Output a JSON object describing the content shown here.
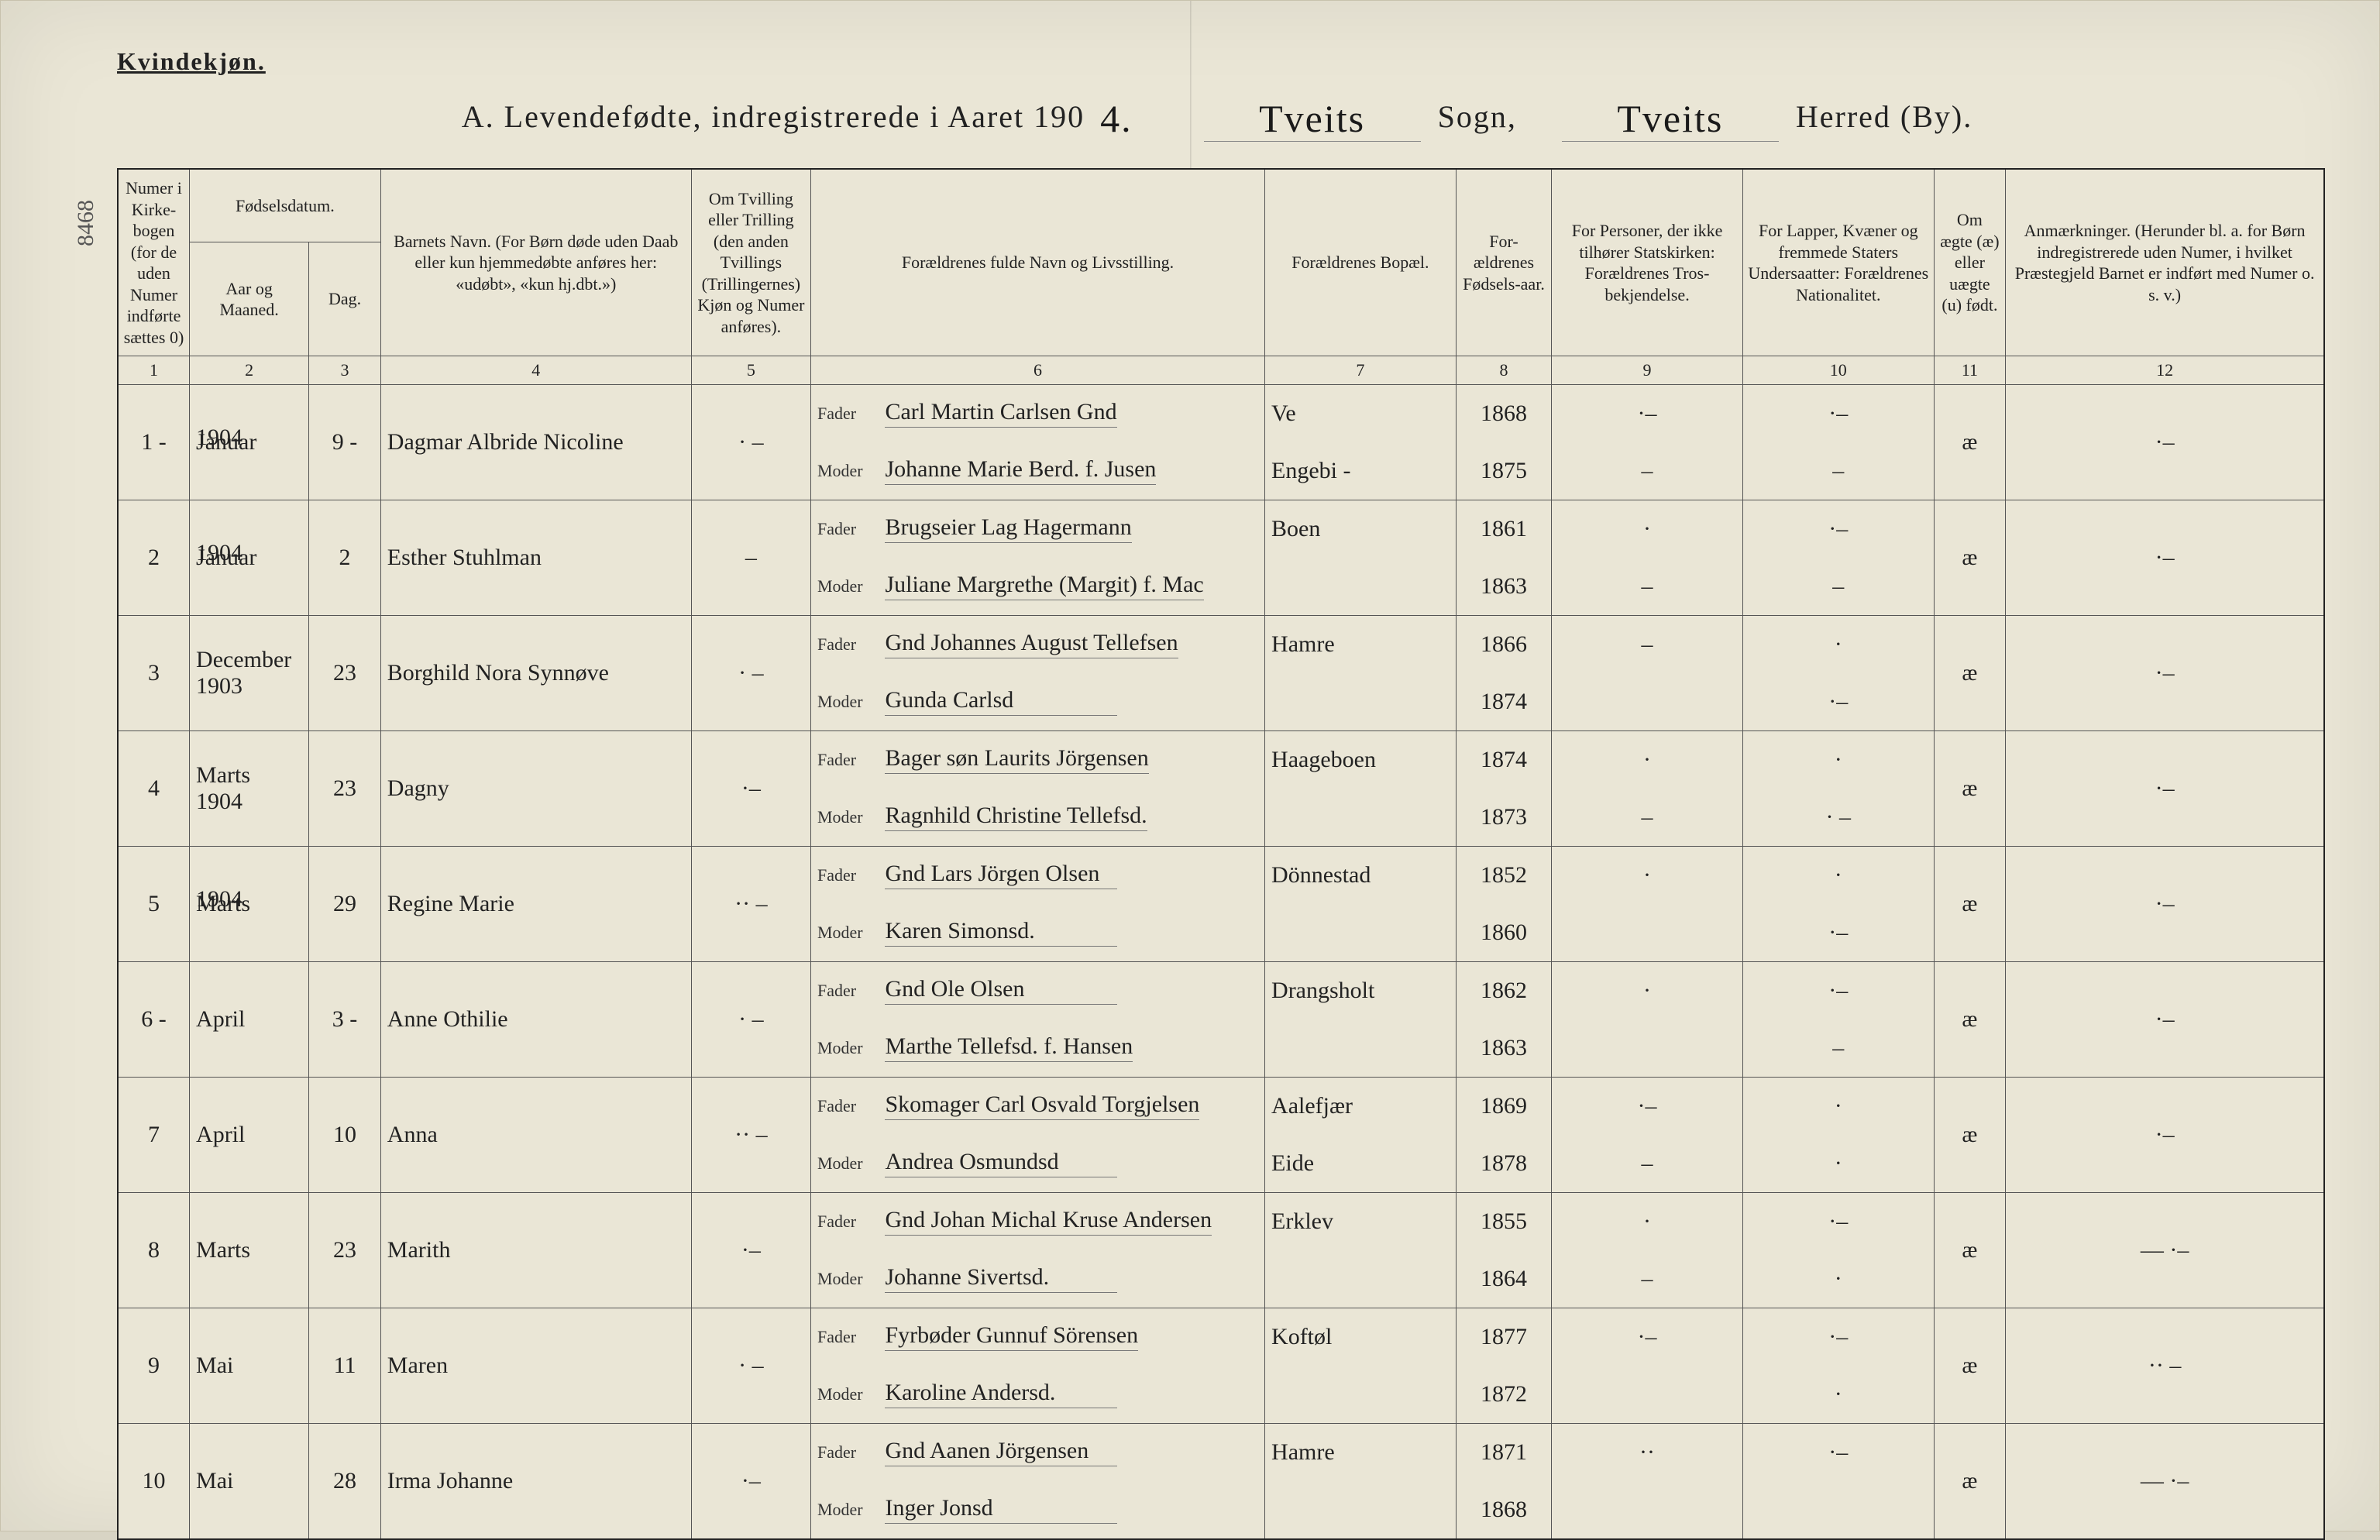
{
  "doc": {
    "corner_label": "Kvindekjøn.",
    "title_prefix": "A.  Levendefødte, indregistrerede i Aaret 190",
    "title_year_suffix": "4.",
    "sogn_script": "Tveits",
    "sogn_label": "Sogn,",
    "herred_script": "Tveits",
    "herred_label": "Herred (By).",
    "side_ref": "8468",
    "colors": {
      "paper": "#eae6d6",
      "ink": "#222222",
      "rule": "#555555",
      "script": "#111111"
    }
  },
  "columns": {
    "c1": "Numer i Kirke-bogen (for de uden Numer indførte sættes 0)",
    "c2_group": "Fødselsdatum.",
    "c2": "Aar og Maaned.",
    "c3": "Dag.",
    "c4": "Barnets Navn.\n(For Børn døde uden Daab eller kun hjemmedøbte anføres her: «udøbt», «kun hj.dbt.»)",
    "c5": "Om Tvilling eller Trilling (den anden Tvillings (Trillingernes) Kjøn og Numer anføres).",
    "c6": "Forældrenes fulde Navn og Livsstilling.",
    "c7": "Forældrenes Bopæl.",
    "c8": "For-ældrenes Fødsels-aar.",
    "c9": "For Personer, der ikke tilhører Statskirken: Forældrenes Tros-bekjendelse.",
    "c10": "For Lapper, Kvæner og fremmede Staters Undersaatter: Forældrenes Nationalitet.",
    "c11": "Om ægte (æ) eller uægte (u) født.",
    "c12": "Anmærkninger.\n(Herunder bl. a. for Børn indregistrerede uden Numer, i hvilket Præstegjeld Barnet er indført med Numer o. s. v.)",
    "numrow": [
      "1",
      "2",
      "3",
      "4",
      "5",
      "6",
      "7",
      "8",
      "9",
      "10",
      "11",
      "12"
    ]
  },
  "labels": {
    "fader": "Fader",
    "moder": "Moder"
  },
  "rows": [
    {
      "num": "1 -",
      "year_hint": "1904",
      "month": "Januar",
      "day": "9 -",
      "name": "Dagmar Albride Nicoline",
      "twin": "· –",
      "fader": "Carl Martin Carlsen Gnd",
      "moder": "Johanne Marie Berd. f. Jusen",
      "bopel_top": "Ve",
      "bopel_bot": "Engebi -",
      "aar_top": "1868",
      "aar_bot": "1875",
      "c9_top": "·–",
      "c9_bot": "–",
      "c10_top": "·–",
      "c10_bot": "–",
      "c11": "æ",
      "c12": "·–"
    },
    {
      "num": "2",
      "year_hint": "1904",
      "month": "Januar",
      "day": "2",
      "name": "Esther Stuhlman",
      "twin": "–",
      "fader": "Brugseier Lag Hagermann",
      "moder": "Juliane Margrethe (Margit) f. Mac",
      "bopel_top": "Boen",
      "bopel_bot": "",
      "aar_top": "1861",
      "aar_bot": "1863",
      "c9_top": "·",
      "c9_bot": "–",
      "c10_top": "·–",
      "c10_bot": "–",
      "c11": "æ",
      "c12": "·–"
    },
    {
      "num": "3",
      "year_hint": "",
      "month": "December 1903",
      "day": "23",
      "name": "Borghild Nora Synnøve",
      "twin": "· –",
      "fader": "Gnd Johannes August Tellefsen",
      "moder": "Gunda Carlsd",
      "bopel_top": "Hamre",
      "bopel_bot": "",
      "aar_top": "1866",
      "aar_bot": "1874",
      "c9_top": "–",
      "c9_bot": "",
      "c10_top": "·",
      "c10_bot": "·–",
      "c11": "æ",
      "c12": "·–"
    },
    {
      "num": "4",
      "year_hint": "",
      "month": "Marts 1904",
      "day": "23",
      "name": "Dagny",
      "twin": "·–",
      "fader": "Bager søn Laurits Jörgensen",
      "moder": "Ragnhild Christine Tellefsd.",
      "bopel_top": "Haageboen",
      "bopel_bot": "",
      "aar_top": "1874",
      "aar_bot": "1873",
      "c9_top": "·",
      "c9_bot": "–",
      "c10_top": "·",
      "c10_bot": "· –",
      "c11": "æ",
      "c12": "·–"
    },
    {
      "num": "5",
      "year_hint": "1904",
      "month": "Marts",
      "day": "29",
      "name": "Regine Marie",
      "twin": "·· –",
      "fader": "Gnd Lars Jörgen Olsen",
      "moder": "Karen Simonsd.",
      "bopel_top": "Dönnestad",
      "bopel_bot": "",
      "aar_top": "1852",
      "aar_bot": "1860",
      "c9_top": "·",
      "c9_bot": "",
      "c10_top": "·",
      "c10_bot": "·–",
      "c11": "æ",
      "c12": "·–"
    },
    {
      "num": "6 -",
      "year_hint": "",
      "month": "April",
      "day": "3 -",
      "name": "Anne Othilie",
      "twin": "· –",
      "fader": "Gnd Ole Olsen",
      "moder": "Marthe Tellefsd. f. Hansen",
      "bopel_top": "Drangsholt",
      "bopel_bot": "",
      "aar_top": "1862",
      "aar_bot": "1863",
      "c9_top": "·",
      "c9_bot": "",
      "c10_top": "·–",
      "c10_bot": "–",
      "c11": "æ",
      "c12": "·–"
    },
    {
      "num": "7",
      "year_hint": "",
      "month": "April",
      "day": "10",
      "name": "Anna",
      "twin": "·· –",
      "fader": "Skomager Carl Osvald Torgjelsen",
      "moder": "Andrea Osmundsd",
      "bopel_top": "Aalefjær",
      "bopel_bot": "Eide",
      "aar_top": "1869",
      "aar_bot": "1878",
      "c9_top": "·–",
      "c9_bot": "–",
      "c10_top": "·",
      "c10_bot": "·",
      "c11": "æ",
      "c12": "·–"
    },
    {
      "num": "8",
      "year_hint": "",
      "month": "Marts",
      "day": "23",
      "name": "Marith",
      "twin": "·–",
      "fader": "Gnd Johan Michal Kruse Andersen",
      "moder": "Johanne Sivertsd.",
      "bopel_top": "Erklev",
      "bopel_bot": "",
      "aar_top": "1855",
      "aar_bot": "1864",
      "c9_top": "·",
      "c9_bot": "–",
      "c10_top": "·–",
      "c10_bot": "·",
      "c11": "æ",
      "c12": "— ·–"
    },
    {
      "num": "9",
      "year_hint": "",
      "month": "Mai",
      "day": "11",
      "name": "Maren",
      "twin": "· –",
      "fader": "Fyrbøder Gunnuf Sörensen",
      "moder": "Karoline Andersd.",
      "bopel_top": "Koftøl",
      "bopel_bot": "",
      "aar_top": "1877",
      "aar_bot": "1872",
      "c9_top": "·–",
      "c9_bot": "",
      "c10_top": "·–",
      "c10_bot": "·",
      "c11": "æ",
      "c12": "·· –"
    },
    {
      "num": "10",
      "year_hint": "",
      "month": "Mai",
      "day": "28",
      "name": "Irma Johanne",
      "twin": "·–",
      "fader": "Gnd Aanen Jörgensen",
      "moder": "Inger Jonsd",
      "bopel_top": "Hamre",
      "bopel_bot": "",
      "aar_top": "1871",
      "aar_bot": "1868",
      "c9_top": "··",
      "c9_bot": "",
      "c10_top": "·–",
      "c10_bot": "",
      "c11": "æ",
      "c12": "— ·–"
    }
  ]
}
